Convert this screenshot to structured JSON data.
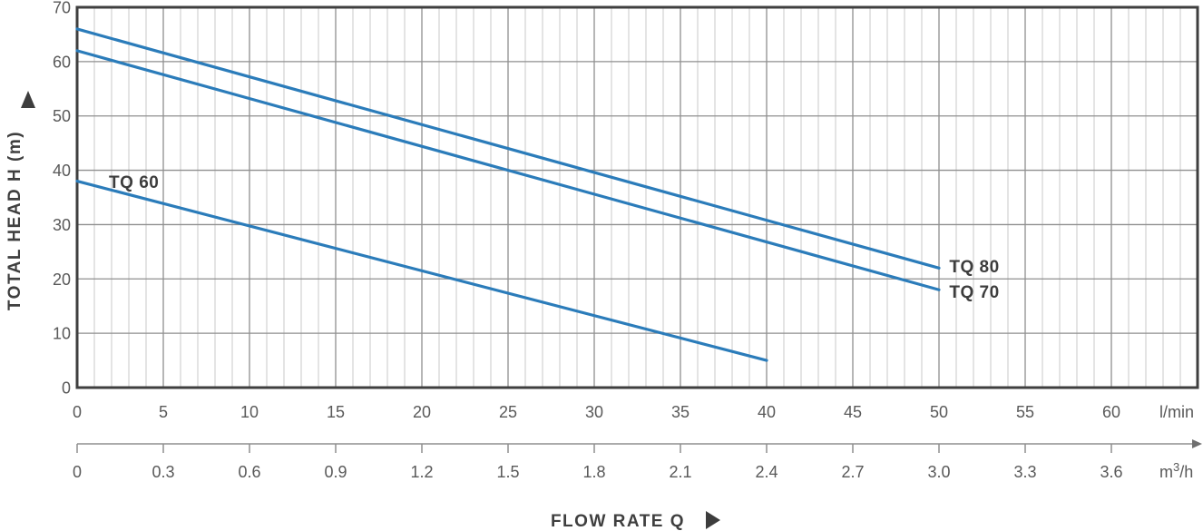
{
  "chart_data": {
    "type": "line",
    "title": "",
    "xlabel": "FLOW RATE Q",
    "ylabel": "TOTAL HEAD H (m)",
    "x_axis_primary": {
      "unit": "l/min",
      "ticks": [
        0,
        5,
        10,
        15,
        20,
        25,
        30,
        35,
        40,
        45,
        50,
        55,
        60
      ],
      "min": 0,
      "max_visible": 65
    },
    "x_axis_secondary": {
      "unit": "m³/h",
      "ticks": [
        "0",
        "0.3",
        "0.6",
        "0.9",
        "1.2",
        "1.5",
        "1.8",
        "2.1",
        "2.4",
        "2.7",
        "3.0",
        "3.3",
        "3.6"
      ]
    },
    "y_axis": {
      "unit": "m",
      "min": 0,
      "max": 70,
      "ticks": [
        0,
        10,
        20,
        30,
        40,
        50,
        60,
        70
      ]
    },
    "grid": {
      "x_minor_step_lmin": 1,
      "x_major_step_lmin": 5,
      "y_major_step_m": 10,
      "grid_on": true
    },
    "series": [
      {
        "name": "TQ 80",
        "x_lmin": [
          0,
          50
        ],
        "head_m": [
          66,
          22
        ],
        "label_at": {
          "q": 50.6,
          "h": 22.3,
          "anchor": "start"
        }
      },
      {
        "name": "TQ 70",
        "x_lmin": [
          0,
          50
        ],
        "head_m": [
          62,
          18
        ],
        "label_at": {
          "q": 50.6,
          "h": 17.6,
          "anchor": "start"
        }
      },
      {
        "name": "TQ 60",
        "x_lmin": [
          0,
          40
        ],
        "head_m": [
          38,
          5
        ],
        "label_at": {
          "q": 3.3,
          "h": 37.8,
          "anchor": "middle"
        }
      }
    ],
    "colors": {
      "series_line": "#2b7cba",
      "grid_minor": "#c9c9c9",
      "grid_major": "#8f8f8f",
      "plot_border": "#3f3f3f",
      "tick_text": "#595959",
      "label_text": "#3d3d3d",
      "background": "#ffffff"
    }
  }
}
